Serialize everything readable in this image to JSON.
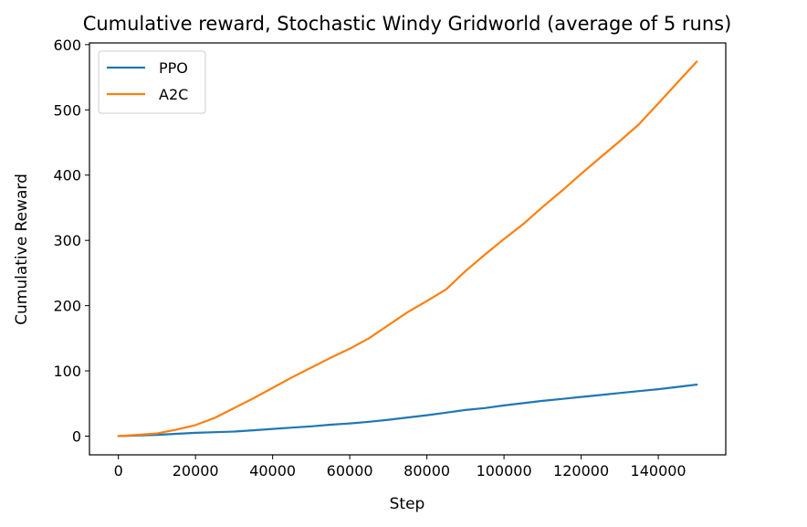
{
  "chart_data": {
    "type": "line",
    "title": "Cumulative reward, Stochastic Windy Gridworld (average of 5 runs)",
    "xlabel": "Step",
    "ylabel": "Cumulative Reward",
    "xlim": [
      -7500,
      157500
    ],
    "ylim": [
      -28.7,
      602.6
    ],
    "xticks": [
      0,
      20000,
      40000,
      60000,
      80000,
      100000,
      120000,
      140000
    ],
    "yticks": [
      0,
      100,
      200,
      300,
      400,
      500,
      600
    ],
    "grid": false,
    "legend_position": "top-left",
    "series": [
      {
        "name": "PPO",
        "color": "#1f77b4",
        "x": [
          0,
          5000,
          10000,
          15000,
          20000,
          25000,
          30000,
          35000,
          40000,
          45000,
          50000,
          55000,
          60000,
          65000,
          70000,
          75000,
          80000,
          85000,
          90000,
          95000,
          100000,
          105000,
          110000,
          115000,
          120000,
          125000,
          130000,
          135000,
          140000,
          145000,
          150000
        ],
        "y": [
          0,
          1,
          2,
          3.5,
          5,
          6,
          7,
          9,
          11,
          13,
          15,
          17.5,
          19.5,
          22,
          25,
          28.5,
          32,
          36,
          40,
          43,
          47,
          50.5,
          54,
          57,
          60,
          63,
          66,
          69,
          72,
          75.5,
          79
        ]
      },
      {
        "name": "A2C",
        "color": "#ff7f0e",
        "x": [
          0,
          5000,
          10000,
          15000,
          20000,
          25000,
          30000,
          35000,
          40000,
          45000,
          50000,
          55000,
          60000,
          65000,
          70000,
          75000,
          80000,
          85000,
          90000,
          95000,
          100000,
          105000,
          110000,
          115000,
          120000,
          125000,
          130000,
          135000,
          140000,
          145000,
          150000
        ],
        "y": [
          0,
          2,
          4,
          10,
          17,
          28,
          43,
          58,
          74,
          90,
          105,
          120,
          134,
          150,
          170,
          190,
          207,
          225,
          253,
          278,
          302,
          325,
          351,
          376,
          402,
          427,
          452,
          478,
          510,
          542,
          574
        ]
      }
    ]
  }
}
